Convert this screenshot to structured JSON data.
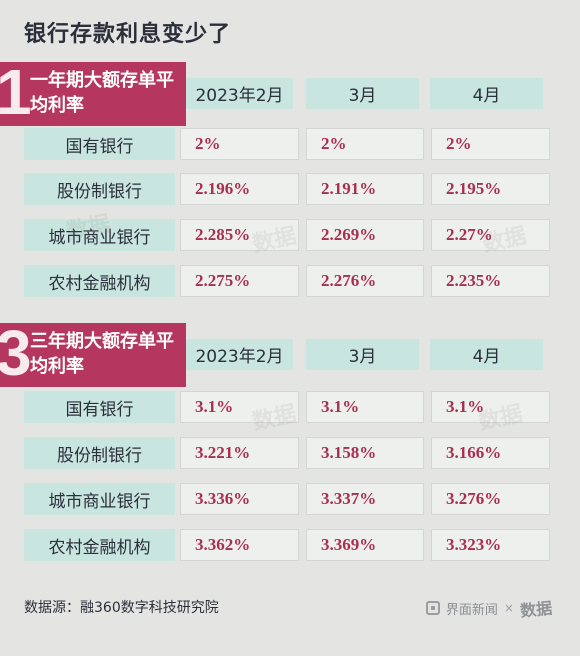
{
  "title": "银行存款利息变少了",
  "headers": [
    "2023年2月",
    "3月",
    "4月"
  ],
  "chart_data": [
    {
      "type": "table",
      "section_number": "1",
      "title": "一年期大额存单平均利率",
      "columns": [
        "2023年2月",
        "3月",
        "4月"
      ],
      "rows": [
        {
          "label": "国有银行",
          "values": [
            "2%",
            "2%",
            "2%"
          ]
        },
        {
          "label": "股份制银行",
          "values": [
            "2.196%",
            "2.191%",
            "2.195%"
          ]
        },
        {
          "label": "城市商业银行",
          "values": [
            "2.285%",
            "2.269%",
            "2.27%"
          ]
        },
        {
          "label": "农村金融机构",
          "values": [
            "2.275%",
            "2.276%",
            "2.235%"
          ]
        }
      ]
    },
    {
      "type": "table",
      "section_number": "3",
      "title": "三年期大额存单平均利率",
      "columns": [
        "2023年2月",
        "3月",
        "4月"
      ],
      "rows": [
        {
          "label": "国有银行",
          "values": [
            "3.1%",
            "3.1%",
            "3.1%"
          ]
        },
        {
          "label": "股份制银行",
          "values": [
            "3.221%",
            "3.158%",
            "3.166%"
          ]
        },
        {
          "label": "城市商业银行",
          "values": [
            "3.336%",
            "3.337%",
            "3.276%"
          ]
        },
        {
          "label": "农村金融机构",
          "values": [
            "3.362%",
            "3.369%",
            "3.323%"
          ]
        }
      ]
    }
  ],
  "colors": {
    "background": "#e4e5e3",
    "accent": "#b5365e",
    "header_fill": "#c8e5df",
    "value_text": "#a8304f"
  },
  "footer": {
    "source": "数据源：融360数字科技研究院",
    "brand": "界面新闻",
    "separator": "×",
    "logo_text": "数据"
  }
}
